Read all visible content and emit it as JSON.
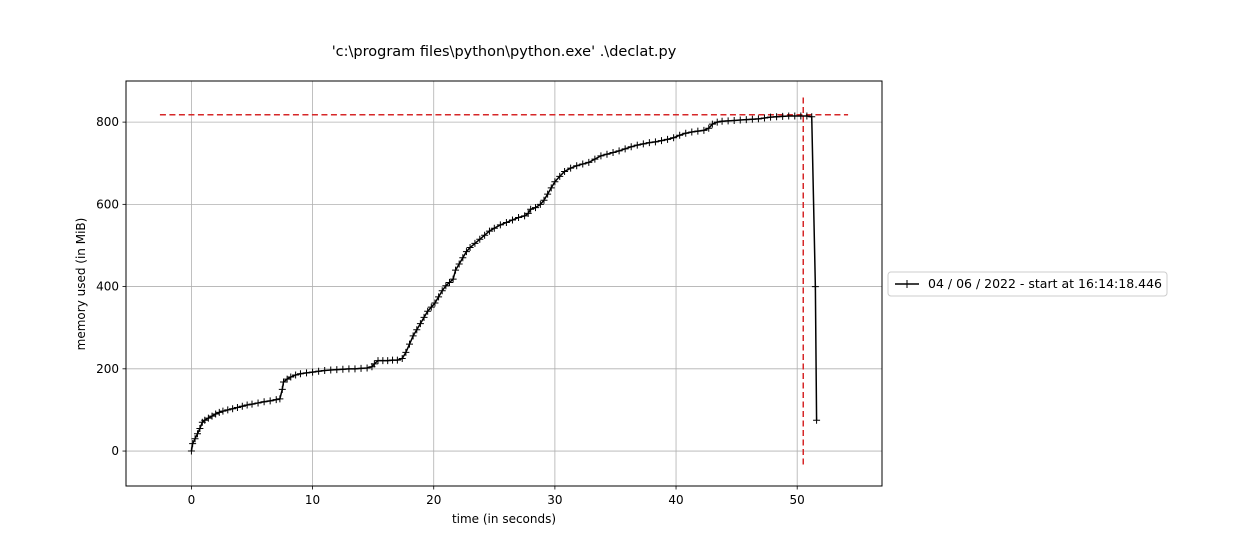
{
  "chart_data": {
    "type": "line",
    "title": "'c:\\program files\\python\\python.exe' .\\declat.py",
    "xlabel": "time (in seconds)",
    "ylabel": "memory used (in MiB)",
    "xlim": [
      -5.4,
      57.0
    ],
    "ylim": [
      -85,
      900
    ],
    "xticks": [
      0,
      10,
      20,
      30,
      40,
      50
    ],
    "yticks": [
      0,
      200,
      400,
      600,
      800
    ],
    "grid": true,
    "legend_position": "center-right outside",
    "series": [
      {
        "name": "04 / 06 / 2022 - start at 16:14:18.446",
        "color": "#000000",
        "marker": "+",
        "points": [
          [
            0.0,
            0
          ],
          [
            0.1,
            18
          ],
          [
            0.3,
            30
          ],
          [
            0.5,
            42
          ],
          [
            0.7,
            55
          ],
          [
            0.9,
            70
          ],
          [
            1.1,
            75
          ],
          [
            1.4,
            80
          ],
          [
            1.7,
            85
          ],
          [
            2.0,
            90
          ],
          [
            2.3,
            94
          ],
          [
            2.6,
            97
          ],
          [
            3.0,
            100
          ],
          [
            3.4,
            103
          ],
          [
            3.8,
            106
          ],
          [
            4.2,
            109
          ],
          [
            4.6,
            112
          ],
          [
            5.0,
            114
          ],
          [
            5.5,
            117
          ],
          [
            6.0,
            120
          ],
          [
            6.5,
            122
          ],
          [
            7.0,
            125
          ],
          [
            7.3,
            127
          ],
          [
            7.5,
            150
          ],
          [
            7.6,
            168
          ],
          [
            7.9,
            175
          ],
          [
            8.2,
            180
          ],
          [
            8.6,
            185
          ],
          [
            9.0,
            188
          ],
          [
            9.5,
            190
          ],
          [
            10.0,
            192
          ],
          [
            10.5,
            194
          ],
          [
            11.0,
            196
          ],
          [
            11.5,
            197
          ],
          [
            12.0,
            198
          ],
          [
            12.5,
            199
          ],
          [
            13.0,
            200
          ],
          [
            13.5,
            200
          ],
          [
            14.0,
            201
          ],
          [
            14.5,
            202
          ],
          [
            14.9,
            205
          ],
          [
            15.1,
            212
          ],
          [
            15.4,
            220
          ],
          [
            15.8,
            220
          ],
          [
            16.2,
            220
          ],
          [
            16.6,
            221
          ],
          [
            17.0,
            221
          ],
          [
            17.4,
            225
          ],
          [
            17.7,
            240
          ],
          [
            18.0,
            260
          ],
          [
            18.3,
            280
          ],
          [
            18.6,
            295
          ],
          [
            18.9,
            310
          ],
          [
            19.2,
            325
          ],
          [
            19.5,
            340
          ],
          [
            19.8,
            350
          ],
          [
            20.1,
            360
          ],
          [
            20.4,
            375
          ],
          [
            20.7,
            390
          ],
          [
            21.0,
            402
          ],
          [
            21.3,
            410
          ],
          [
            21.6,
            418
          ],
          [
            21.8,
            440
          ],
          [
            22.1,
            455
          ],
          [
            22.4,
            470
          ],
          [
            22.7,
            485
          ],
          [
            23.0,
            495
          ],
          [
            23.4,
            505
          ],
          [
            23.8,
            515
          ],
          [
            24.2,
            525
          ],
          [
            24.6,
            535
          ],
          [
            25.0,
            542
          ],
          [
            25.5,
            550
          ],
          [
            26.0,
            556
          ],
          [
            26.5,
            562
          ],
          [
            27.0,
            568
          ],
          [
            27.5,
            572
          ],
          [
            27.8,
            578
          ],
          [
            28.0,
            588
          ],
          [
            28.4,
            592
          ],
          [
            28.8,
            600
          ],
          [
            29.1,
            610
          ],
          [
            29.4,
            625
          ],
          [
            29.7,
            640
          ],
          [
            30.0,
            655
          ],
          [
            30.4,
            668
          ],
          [
            30.8,
            680
          ],
          [
            31.3,
            688
          ],
          [
            31.8,
            694
          ],
          [
            32.3,
            698
          ],
          [
            32.8,
            702
          ],
          [
            33.3,
            710
          ],
          [
            33.8,
            718
          ],
          [
            34.3,
            722
          ],
          [
            34.8,
            726
          ],
          [
            35.3,
            730
          ],
          [
            35.8,
            735
          ],
          [
            36.3,
            740
          ],
          [
            36.8,
            744
          ],
          [
            37.3,
            747
          ],
          [
            37.8,
            750
          ],
          [
            38.3,
            752
          ],
          [
            38.8,
            755
          ],
          [
            39.3,
            758
          ],
          [
            39.8,
            762
          ],
          [
            40.3,
            768
          ],
          [
            40.8,
            773
          ],
          [
            41.3,
            776
          ],
          [
            41.8,
            778
          ],
          [
            42.3,
            780
          ],
          [
            42.7,
            785
          ],
          [
            43.0,
            795
          ],
          [
            43.4,
            800
          ],
          [
            43.8,
            802
          ],
          [
            44.3,
            803
          ],
          [
            44.8,
            804
          ],
          [
            45.3,
            805
          ],
          [
            45.8,
            806
          ],
          [
            46.3,
            807
          ],
          [
            46.8,
            808
          ],
          [
            47.3,
            810
          ],
          [
            47.8,
            812
          ],
          [
            48.3,
            813
          ],
          [
            48.8,
            814
          ],
          [
            49.3,
            815
          ],
          [
            49.8,
            815
          ],
          [
            50.3,
            815
          ],
          [
            50.8,
            815
          ],
          [
            51.2,
            813
          ],
          [
            51.5,
            400
          ],
          [
            51.6,
            75
          ]
        ]
      }
    ],
    "reference_lines": [
      {
        "orientation": "horizontal",
        "value": 818,
        "from": -2.6,
        "to": 54.2,
        "color": "#d62728",
        "style": "dashed"
      },
      {
        "orientation": "vertical",
        "value": 50.5,
        "from": -40,
        "to": 860,
        "color": "#d62728",
        "style": "dashed"
      }
    ]
  }
}
